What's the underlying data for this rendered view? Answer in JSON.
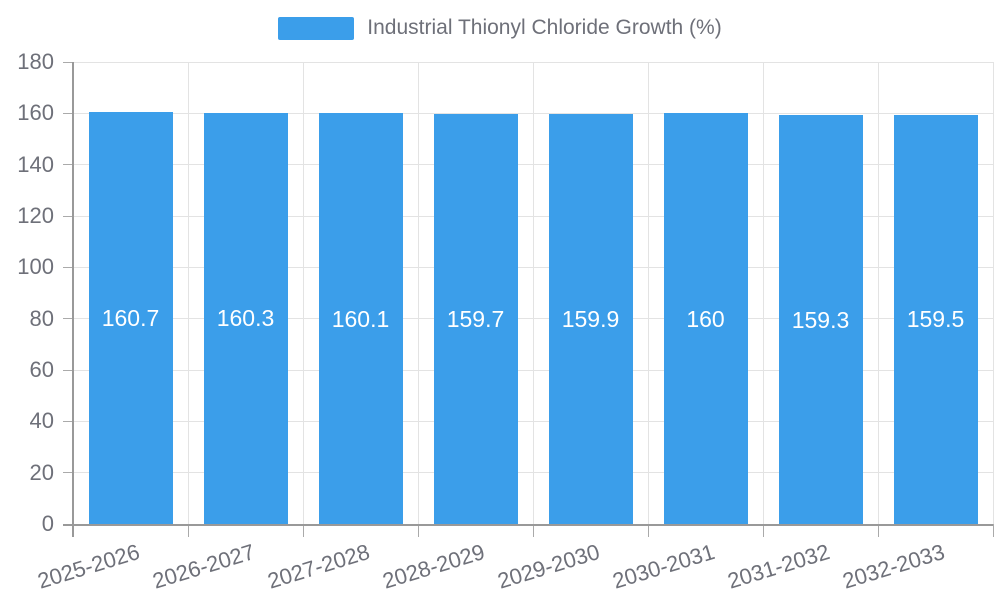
{
  "legend": {
    "label": "Industrial Thionyl Chloride Growth (%)",
    "position": "top"
  },
  "colors": {
    "bar": "#3B9EEA",
    "axis_line": "#999999",
    "grid_line": "#E3E3E3",
    "tick": "#AAAAAA",
    "axis_text": "#6E7079",
    "value_text": "#FFFFFF",
    "background": "#FFFFFF"
  },
  "chart_data": {
    "type": "bar",
    "title": "Industrial Thionyl Chloride Growth (%)",
    "legend_position": "top",
    "grid": true,
    "categories": [
      "2025-2026",
      "2026-2027",
      "2027-2028",
      "2028-2029",
      "2029-2030",
      "2030-2031",
      "2031-2032",
      "2032-2033"
    ],
    "series": [
      {
        "name": "Industrial Thionyl Chloride Growth (%)",
        "color": "#3B9EEA",
        "values": [
          160.7,
          160.3,
          160.1,
          159.7,
          159.9,
          160,
          159.3,
          159.5
        ]
      }
    ],
    "xlabel": "",
    "ylabel": "",
    "ylim": [
      0,
      180
    ],
    "y_ticks": [
      0,
      20,
      40,
      60,
      80,
      100,
      120,
      140,
      160,
      180
    ],
    "x_tick_rotation_deg": -17,
    "value_labels": "inside-center"
  }
}
